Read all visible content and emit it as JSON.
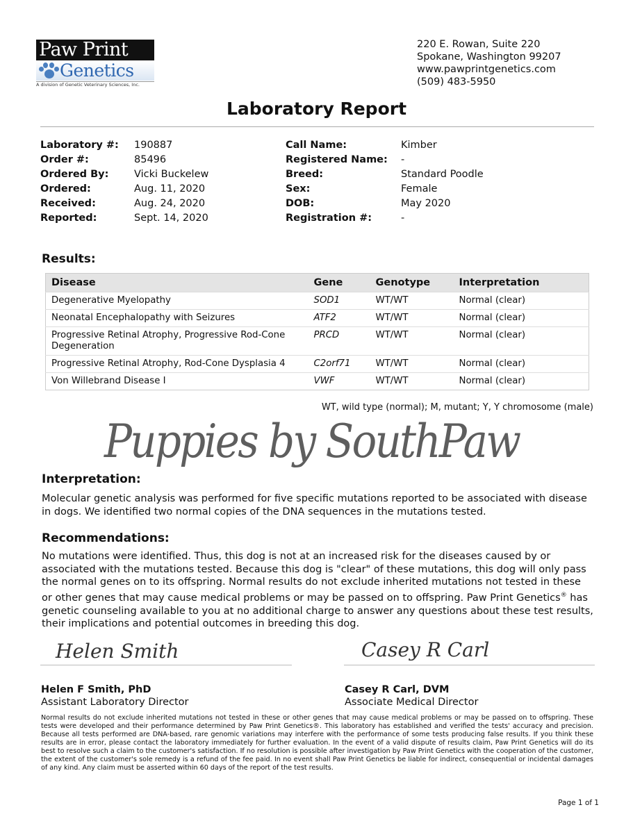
{
  "logo": {
    "line1": "Paw Print",
    "line2": "Genetics",
    "tagline": "A division of Genetic Veterinary Sciences, Inc."
  },
  "address": [
    "220 E. Rowan, Suite 220",
    "Spokane, Washington 99207",
    "www.pawprintgenetics.com",
    "(509) 483-5950"
  ],
  "title": "Laboratory Report",
  "info_left": [
    {
      "label": "Laboratory #:",
      "value": "190887"
    },
    {
      "label": "Order #:",
      "value": "85496"
    },
    {
      "label": "Ordered By:",
      "value": "Vicki Buckelew"
    },
    {
      "label": "Ordered:",
      "value": "Aug. 11, 2020"
    },
    {
      "label": "Received:",
      "value": "Aug. 24, 2020"
    },
    {
      "label": "Reported:",
      "value": "Sept. 14, 2020"
    }
  ],
  "info_right": [
    {
      "label": "Call Name:",
      "value": "Kimber"
    },
    {
      "label": "Registered Name:",
      "value": "-"
    },
    {
      "label": "Breed:",
      "value": "Standard Poodle"
    },
    {
      "label": "Sex:",
      "value": "Female"
    },
    {
      "label": "DOB:",
      "value": "May 2020"
    },
    {
      "label": "Registration #:",
      "value": "-"
    }
  ],
  "results": {
    "heading": "Results:",
    "headers": [
      "Disease",
      "Gene",
      "Genotype",
      "Interpretation"
    ],
    "rows": [
      [
        "Degenerative Myelopathy",
        "SOD1",
        "WT/WT",
        "Normal (clear)"
      ],
      [
        "Neonatal Encephalopathy with Seizures",
        "ATF2",
        "WT/WT",
        "Normal (clear)"
      ],
      [
        "Progressive Retinal Atrophy, Progressive Rod-Cone Degeneration",
        "PRCD",
        "WT/WT",
        "Normal (clear)"
      ],
      [
        "Progressive Retinal Atrophy, Rod-Cone Dysplasia 4",
        "C2orf71",
        "WT/WT",
        "Normal (clear)"
      ],
      [
        "Von Willebrand Disease I",
        "VWF",
        "WT/WT",
        "Normal (clear)"
      ]
    ],
    "footnote": "WT, wild type (normal); M, mutant; Y, Y chromosome (male)"
  },
  "interpretation": {
    "heading": "Interpretation:",
    "text": "Molecular genetic analysis was performed for five specific mutations reported to be associated with disease in dogs. We identified two normal copies of the DNA sequences in the mutations tested."
  },
  "recommendations": {
    "heading": "Recommendations:",
    "text_before": "No mutations were identified. Thus, this dog is not at an increased risk for the diseases caused by or associated with the mutations tested. Because this dog is \"clear\" of these mutations, this dog will only pass the normal genes on to its offspring. Normal results do not exclude inherited mutations not tested in these or other genes that may cause medical problems or may be passed on to offspring. Paw Print Genetics",
    "reg": "®",
    "text_after": " has genetic counseling available to you at no additional charge to answer any questions about these test results, their implications and potential outcomes in breeding this dog."
  },
  "watermark": "Puppies by SouthPaw",
  "signatures": [
    {
      "signature": "Helen Smith",
      "name": "Helen F Smith, PhD",
      "title": "Assistant Laboratory Director"
    },
    {
      "signature": "Casey R Carl",
      "name": "Casey R Carl, DVM",
      "title": "Associate Medical Director"
    }
  ],
  "disclaimer": "Normal results do not exclude inherited mutations not tested in these or other genes that may cause medical problems or may be passed on to offspring. These tests were developed and their performance determined by Paw Print Genetics®. This laboratory has established and verified the tests' accuracy and precision. Because all tests performed are DNA-based, rare genomic variations may interfere with the performance of some tests producing false results. If you think these results are in error, please contact the laboratory immediately for further evaluation. In the event of a valid dispute of results claim, Paw Print Genetics will do its best to resolve such a claim to the customer's satisfaction. If no resolution is possible after investigation by Paw Print Genetics with the cooperation of the customer, the extent of the customer's sole remedy is a refund of the fee paid. In no event shall Paw Print Genetics be liable for indirect, consequential or incidental damages of any kind. Any claim must be asserted within 60 days of the report of the test results.",
  "page": "Page 1 of 1"
}
